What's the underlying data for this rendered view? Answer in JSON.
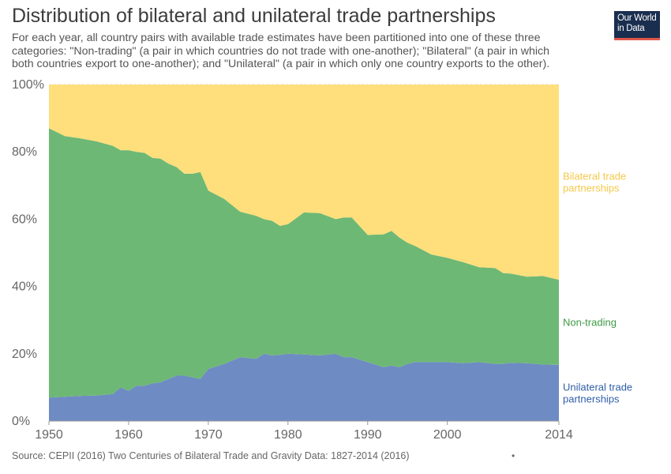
{
  "title": "Distribution of bilateral and unilateral trade partnerships",
  "subtitle": "For each year, all country pairs with available trade estimates have been partitioned into one of these three categories: \"Non-trading\" (a pair in which countries do not trade with one-another); \"Bilateral\" (a pair in which both countries export to one-another); and \"Unilateral\" (a pair in which only one country exports to the other).",
  "logo": {
    "line1": "Our World",
    "line2": "in Data"
  },
  "source": "Source: CEPII (2016) Two Centuries of Bilateral Trade and Gravity Data: 1827-2014 (2016)",
  "footer_dot": "•",
  "chart_data": {
    "type": "area",
    "stacked": true,
    "relative": true,
    "ylim": [
      0,
      100
    ],
    "xlim": [
      1950,
      2014
    ],
    "y_ticks": [
      "0%",
      "20%",
      "40%",
      "60%",
      "80%",
      "100%"
    ],
    "x_ticks": [
      "1950",
      "1960",
      "1970",
      "1980",
      "1990",
      "2000",
      "2014"
    ],
    "grid": true,
    "x": [
      1950,
      1952,
      1954,
      1956,
      1958,
      1959,
      1960,
      1961,
      1962,
      1963,
      1964,
      1965,
      1966,
      1967,
      1968,
      1969,
      1970,
      1972,
      1974,
      1976,
      1977,
      1978,
      1979,
      1980,
      1982,
      1984,
      1986,
      1987,
      1988,
      1990,
      1992,
      1993,
      1994,
      1995,
      1996,
      1998,
      2000,
      2002,
      2004,
      2006,
      2007,
      2008,
      2010,
      2012,
      2014
    ],
    "series": [
      {
        "name": "Unilateral trade partnerships",
        "color": "#6e8bc3",
        "values": [
          7,
          7.2,
          7.5,
          7.6,
          8,
          10,
          9,
          10.5,
          10.5,
          11.2,
          11.5,
          12.5,
          13.5,
          13.5,
          13,
          12.5,
          15.5,
          17,
          19,
          18.5,
          20,
          19.5,
          19.7,
          20,
          19.8,
          19.5,
          20,
          19,
          19,
          17.5,
          16,
          16.5,
          16,
          17,
          17.5,
          17.5,
          17.5,
          17.2,
          17.5,
          17,
          17,
          17.3,
          17.2,
          16.8,
          16.7
        ]
      },
      {
        "name": "Non-trading",
        "color": "#6eb875",
        "values": [
          80,
          77.5,
          76.5,
          75.5,
          73.8,
          70.5,
          71.5,
          69.5,
          69.2,
          67,
          66.5,
          64,
          62,
          60,
          60.5,
          61.5,
          53,
          49,
          43.2,
          42.5,
          40,
          40,
          38.3,
          38.5,
          42.2,
          42.3,
          40,
          41.5,
          41.5,
          37.8,
          39.5,
          40,
          38.5,
          36,
          34.5,
          32,
          31,
          30,
          28.2,
          28.5,
          27,
          26.5,
          25.7,
          26.3,
          25.3
        ]
      },
      {
        "name": "Bilateral trade partnerships",
        "color": "#ffdf7b",
        "values": [
          13,
          15.3,
          16,
          16.9,
          18.2,
          19.5,
          19.5,
          20,
          20.3,
          21.8,
          22,
          23.5,
          24.5,
          26.5,
          26.5,
          26,
          31.5,
          34,
          37.8,
          39,
          40,
          40.5,
          42,
          41.5,
          38,
          38.2,
          40,
          39.5,
          39.5,
          44.7,
          44.5,
          43.5,
          45.5,
          47,
          48,
          50.5,
          51.5,
          52.8,
          54.3,
          54.5,
          56,
          56.2,
          57.1,
          56.9,
          58
        ]
      }
    ],
    "labels": [
      {
        "lines": [
          "Bilateral trade",
          "partnerships"
        ],
        "color": "#f5c84a"
      },
      {
        "lines": [
          "Non-trading"
        ],
        "color": "#3d9a44"
      },
      {
        "lines": [
          "Unilateral trade",
          "partnerships"
        ],
        "color": "#2f5ea8"
      }
    ]
  }
}
